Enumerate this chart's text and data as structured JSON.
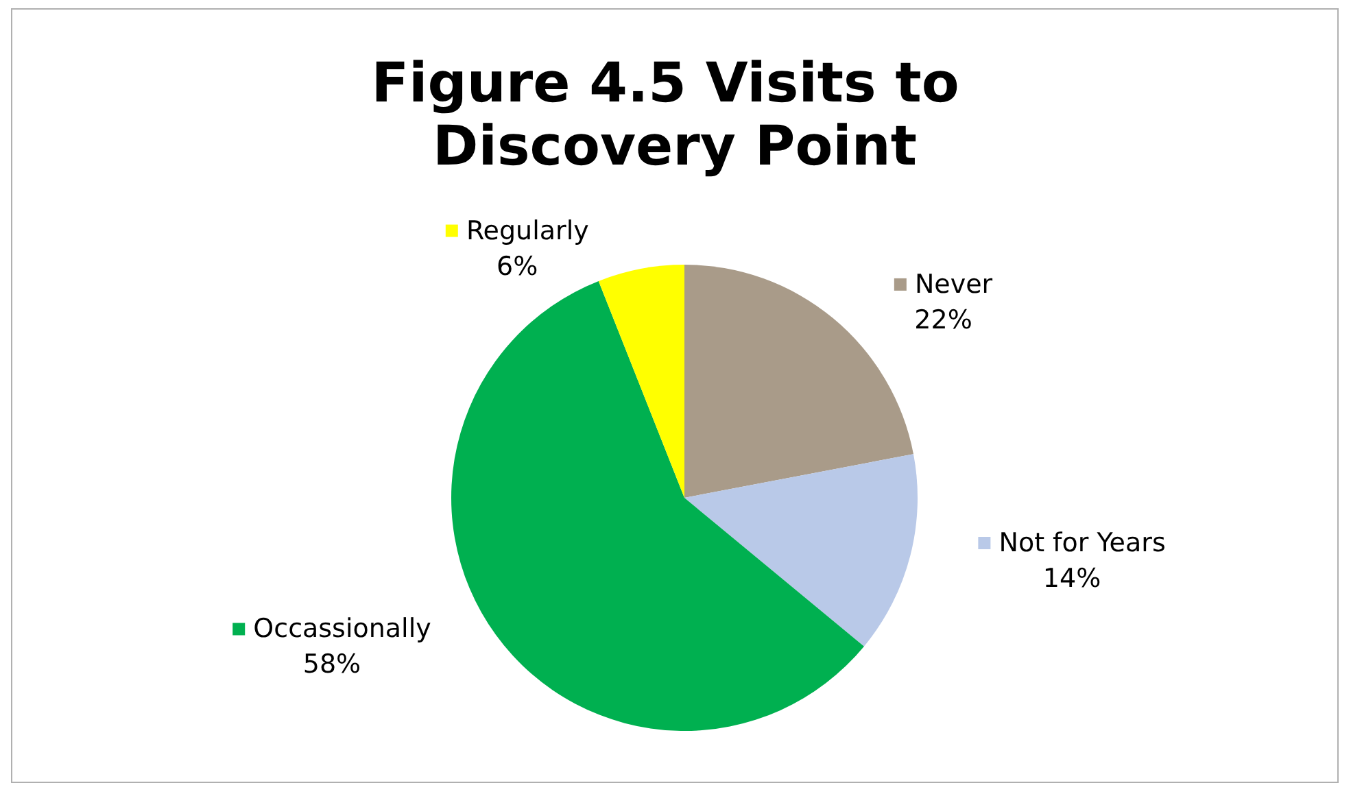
{
  "chart_data": {
    "type": "pie",
    "title": "Figure 4.5 Visits to Discovery Point",
    "categories": [
      "Never",
      "Not for Years",
      "Occassionally",
      "Regularly"
    ],
    "values": [
      22,
      14,
      58,
      6
    ],
    "colors": [
      "#a99b89",
      "#b9c9e8",
      "#00b050",
      "#ffff00"
    ],
    "value_labels": [
      "22%",
      "14%",
      "58%",
      "6%"
    ],
    "legend": true
  }
}
